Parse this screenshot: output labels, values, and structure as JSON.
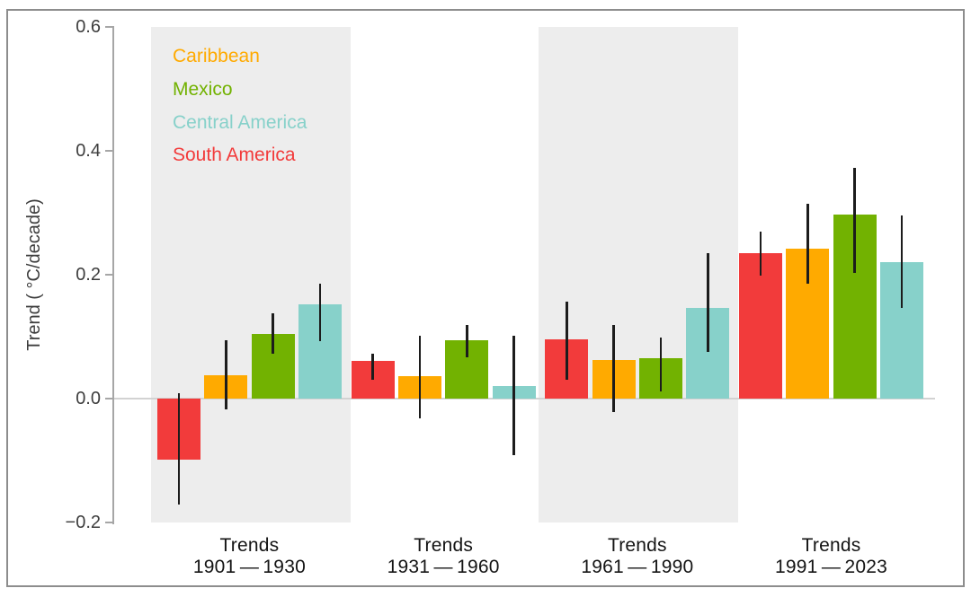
{
  "figure": {
    "background": "#ffffff",
    "border_color": "#8d8d8d"
  },
  "chart_data": {
    "type": "bar",
    "title": "",
    "xlabel": "",
    "ylabel": "Trend ( °C/decade)",
    "ylim": [
      -0.2,
      0.6
    ],
    "yticks": [
      0.6,
      0.4,
      0.2,
      0.0,
      -0.2
    ],
    "grid": false,
    "legend_position": "top-left-inside",
    "band_color": "#ededed",
    "errorbar_color": "#1c1c1c",
    "axis_color": "#a6a6a6",
    "tick_label_color": "#3d3d3d",
    "xlabel_color": "#141414",
    "groups": [
      {
        "label_line1": "Trends",
        "label_line2": "1901 — 1930",
        "shaded": true
      },
      {
        "label_line1": "Trends",
        "label_line2": "1931 — 1960",
        "shaded": false
      },
      {
        "label_line1": "Trends",
        "label_line2": "1961 — 1990",
        "shaded": true
      },
      {
        "label_line1": "Trends",
        "label_line2": "1991 — 2023",
        "shaded": false
      }
    ],
    "series": [
      {
        "name": "South America",
        "color": "#f23b3b",
        "values": [
          -0.099,
          0.061,
          0.096,
          0.235
        ],
        "ci_low": [
          -0.171,
          0.03,
          0.03,
          0.198
        ],
        "ci_high": [
          0.009,
          0.073,
          0.157,
          0.27
        ]
      },
      {
        "name": "Caribbean",
        "color": "#ffaa00",
        "values": [
          0.038,
          0.036,
          0.063,
          0.242
        ],
        "ci_low": [
          -0.017,
          -0.032,
          -0.022,
          0.185
        ],
        "ci_high": [
          0.094,
          0.101,
          0.119,
          0.314
        ]
      },
      {
        "name": "Mexico",
        "color": "#72b201",
        "values": [
          0.104,
          0.094,
          0.065,
          0.297
        ],
        "ci_low": [
          0.072,
          0.067,
          0.012,
          0.203
        ],
        "ci_high": [
          0.138,
          0.119,
          0.099,
          0.373
        ]
      },
      {
        "name": "Central America",
        "color": "#87d1ca",
        "values": [
          0.152,
          0.021,
          0.146,
          0.221
        ],
        "ci_low": [
          0.093,
          -0.091,
          0.075,
          0.147
        ],
        "ci_high": [
          0.185,
          0.101,
          0.235,
          0.295
        ]
      }
    ],
    "legend": [
      {
        "label": "Caribbean",
        "color": "#ffaa00"
      },
      {
        "label": "Mexico",
        "color": "#72b201"
      },
      {
        "label": "Central America",
        "color": "#87d1ca"
      },
      {
        "label": "South America",
        "color": "#f23b3b"
      }
    ]
  }
}
